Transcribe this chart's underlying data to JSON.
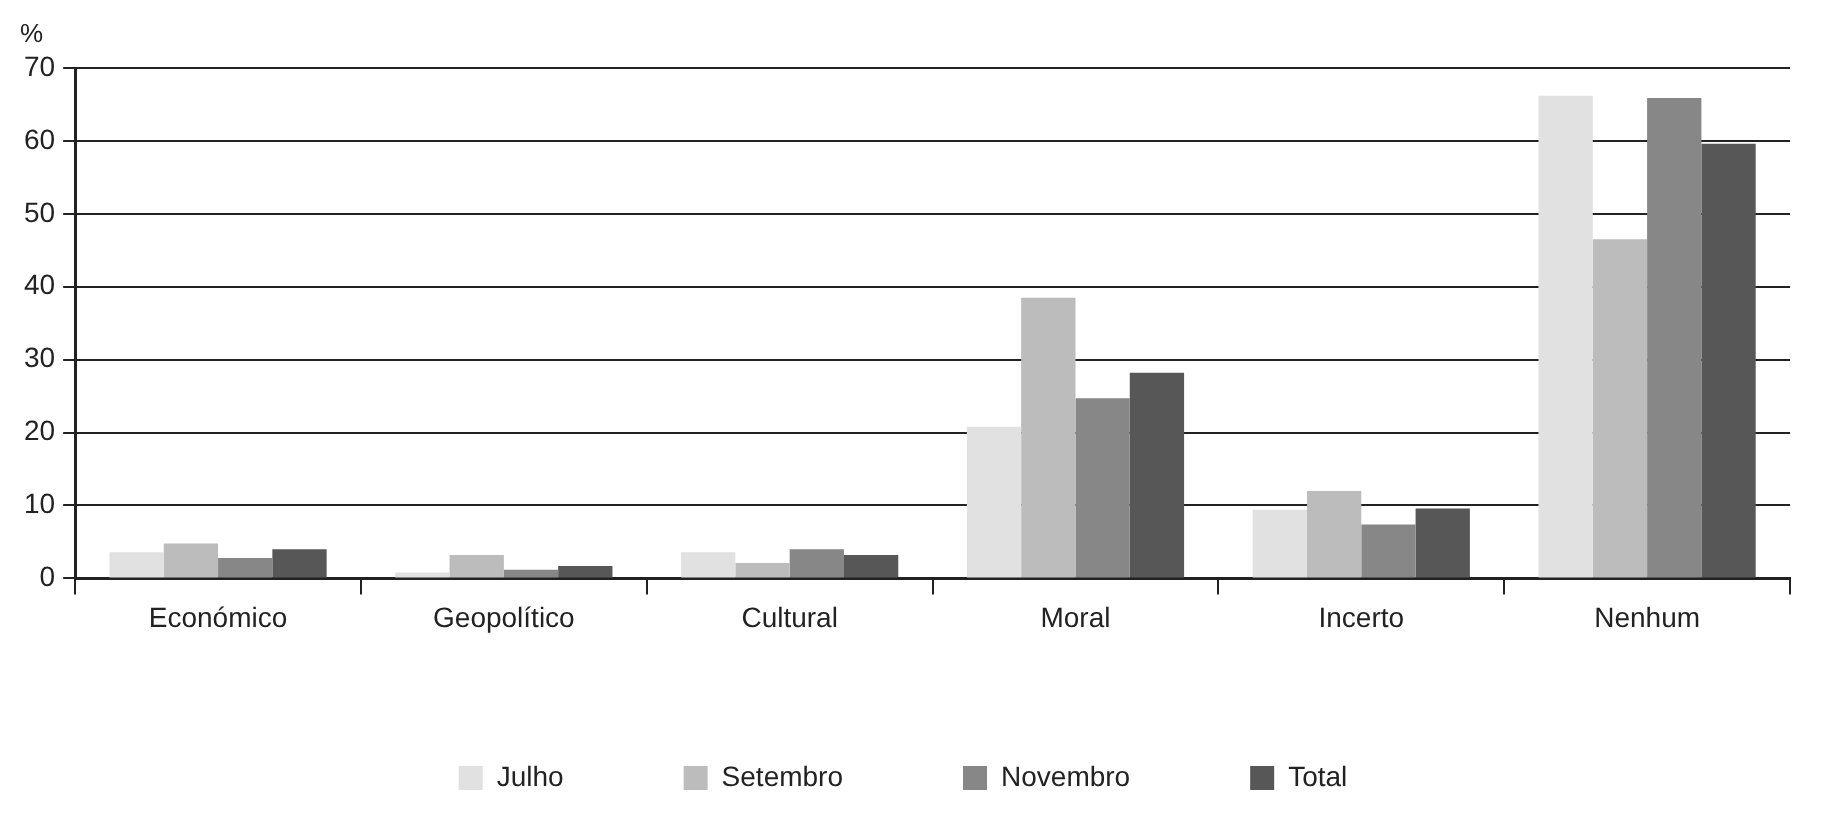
{
  "chart_data": {
    "type": "bar",
    "ylabel": "%",
    "categories": [
      "Económico",
      "Geopolítico",
      "Cultural",
      "Moral",
      "Incerto",
      "Nenhum"
    ],
    "series": [
      {
        "name": "Julho",
        "color": "#e1e1e1",
        "values": [
          3.6,
          0.8,
          3.6,
          20.8,
          9.4,
          66.2
        ]
      },
      {
        "name": "Setembro",
        "color": "#bcbcbc",
        "values": [
          4.8,
          3.2,
          2.1,
          38.5,
          12.0,
          46.5
        ]
      },
      {
        "name": "Novembro",
        "color": "#878787",
        "values": [
          2.8,
          1.2,
          4.0,
          24.7,
          7.4,
          65.9
        ]
      },
      {
        "name": "Total",
        "color": "#575757",
        "values": [
          4.0,
          1.7,
          3.2,
          28.2,
          9.6,
          59.6
        ]
      }
    ],
    "ylim": [
      0,
      70
    ],
    "yticks": [
      0,
      10,
      20,
      30,
      40,
      50,
      60,
      70
    ],
    "grid": "y",
    "legend": "bottom"
  }
}
